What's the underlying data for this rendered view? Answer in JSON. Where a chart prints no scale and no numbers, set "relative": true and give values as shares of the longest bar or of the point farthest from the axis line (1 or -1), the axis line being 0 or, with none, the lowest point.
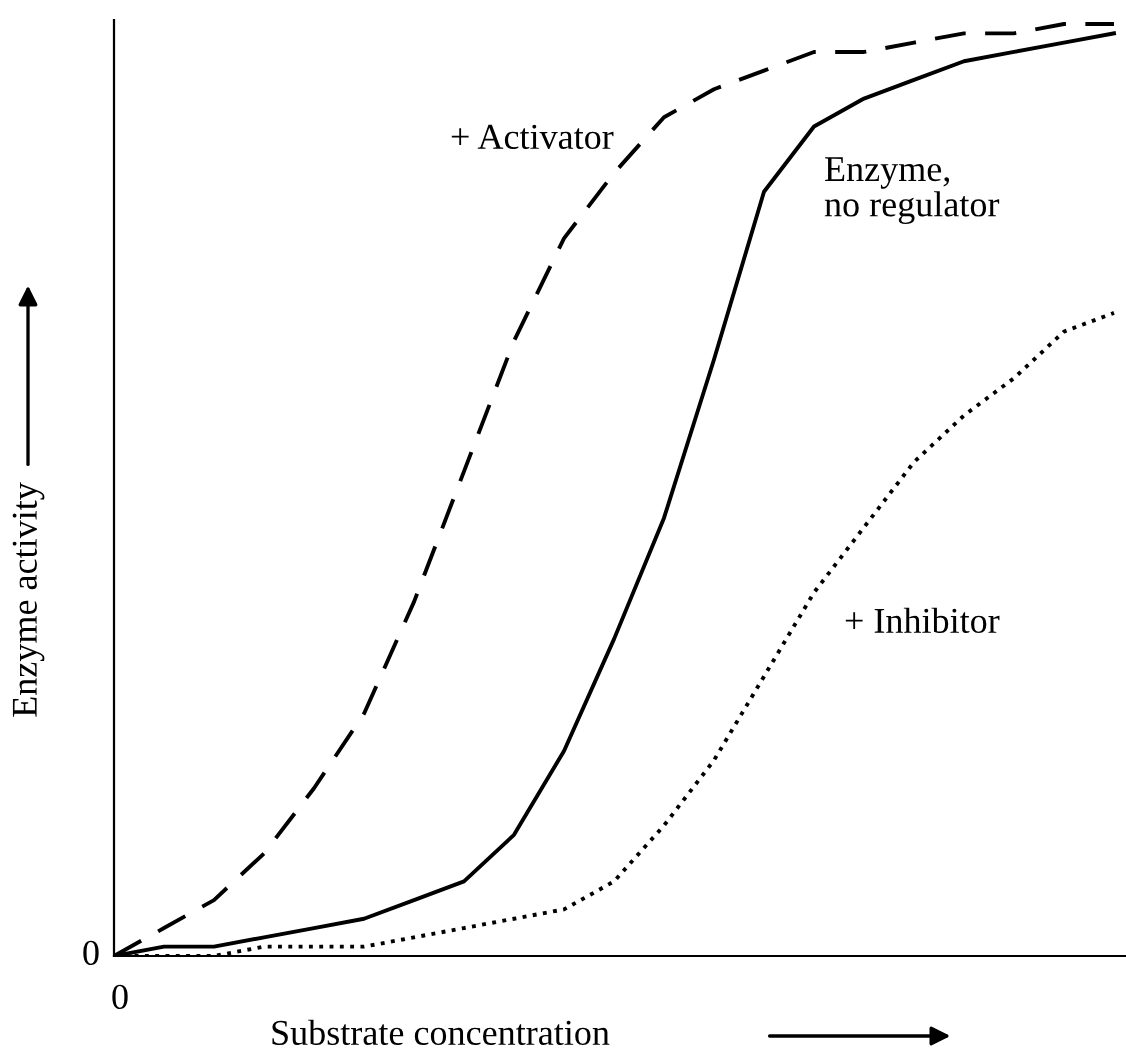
{
  "chart_data": {
    "type": "line",
    "xlabel": "Substrate concentration",
    "ylabel": "Enzyme activity",
    "relative": true,
    "categories": [
      null,
      null,
      null,
      null,
      null,
      null,
      null,
      null,
      null,
      null,
      null,
      null,
      null,
      null,
      null,
      null,
      null,
      null,
      null,
      null,
      null
    ],
    "series": [
      {
        "name": "+ Activator",
        "color": "#000000",
        "line_style": "dashed",
        "values": [
          0,
          0.03,
          0.06,
          0.11,
          0.18,
          0.26,
          0.38,
          0.52,
          0.66,
          0.77,
          0.84,
          0.9,
          0.93,
          0.95,
          0.97,
          0.97,
          0.98,
          0.99,
          0.99,
          1.0,
          1.0
        ]
      },
      {
        "name": "Enzyme,\nno regulator",
        "color": "#000000",
        "line_style": "solid",
        "values": [
          0,
          0.01,
          0.01,
          0.02,
          0.03,
          0.04,
          0.06,
          0.08,
          0.13,
          0.22,
          0.34,
          0.47,
          0.64,
          0.82,
          0.89,
          0.92,
          0.94,
          0.96,
          0.97,
          0.98,
          0.99
        ]
      },
      {
        "name": "+ Inhibitor",
        "color": "#000000",
        "line_style": "dotted",
        "values": [
          0,
          0,
          0,
          0.01,
          0.01,
          0.01,
          0.02,
          0.03,
          0.04,
          0.05,
          0.08,
          0.14,
          0.21,
          0.3,
          0.39,
          0.46,
          0.53,
          0.58,
          0.62,
          0.67,
          0.69
        ]
      }
    ],
    "annotations": [
      "0",
      "0"
    ],
    "legend": false
  }
}
